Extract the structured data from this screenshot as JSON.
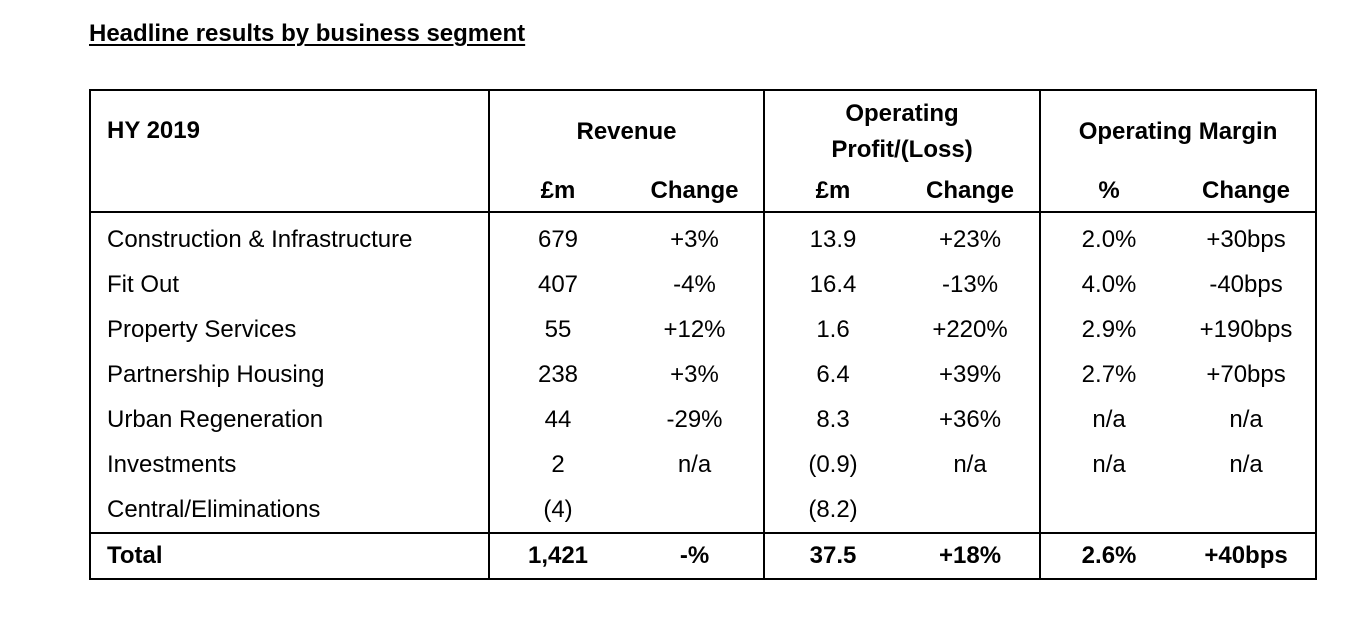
{
  "title": "Headline results by business segment",
  "header": {
    "period": "HY 2019",
    "groups": {
      "revenue": "Revenue",
      "operating_profit_line1": "Operating",
      "operating_profit_line2": "Profit/(Loss)",
      "operating_margin": "Operating Margin"
    },
    "subheaders": {
      "revenue_value": "£m",
      "revenue_change": "Change",
      "op_value": "£m",
      "op_change": "Change",
      "margin_value": "%",
      "margin_change": "Change"
    }
  },
  "rows": [
    {
      "segment": "Construction & Infrastructure",
      "revenue": "679",
      "revenue_change": "+3%",
      "op": "13.9",
      "op_change": "+23%",
      "margin": "2.0%",
      "margin_change": "+30bps"
    },
    {
      "segment": "Fit Out",
      "revenue": "407",
      "revenue_change": "-4%",
      "op": "16.4",
      "op_change": "-13%",
      "margin": "4.0%",
      "margin_change": "-40bps"
    },
    {
      "segment": "Property Services",
      "revenue": "55",
      "revenue_change": "+12%",
      "op": "1.6",
      "op_change": "+220%",
      "margin": "2.9%",
      "margin_change": "+190bps"
    },
    {
      "segment": "Partnership Housing",
      "revenue": "238",
      "revenue_change": "+3%",
      "op": "6.4",
      "op_change": "+39%",
      "margin": "2.7%",
      "margin_change": "+70bps"
    },
    {
      "segment": "Urban Regeneration",
      "revenue": "44",
      "revenue_change": "-29%",
      "op": "8.3",
      "op_change": "+36%",
      "margin": "n/a",
      "margin_change": "n/a"
    },
    {
      "segment": "Investments",
      "revenue": "2",
      "revenue_change": "n/a",
      "op": "(0.9)",
      "op_change": "n/a",
      "margin": "n/a",
      "margin_change": "n/a"
    },
    {
      "segment": "Central/Eliminations",
      "revenue": "(4)",
      "revenue_change": "",
      "op": "(8.2)",
      "op_change": "",
      "margin": "",
      "margin_change": ""
    }
  ],
  "total": {
    "segment": "Total",
    "revenue": "1,421",
    "revenue_change": "-%",
    "op": "37.5",
    "op_change": "+18%",
    "margin": "2.6%",
    "margin_change": "+40bps"
  }
}
